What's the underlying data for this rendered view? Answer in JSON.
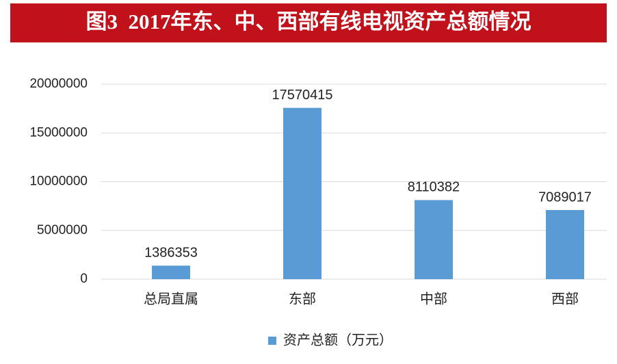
{
  "chart_data": {
    "type": "bar",
    "title": "图3  2017年东、中、西部有线电视资产总额情况",
    "categories": [
      "总局直属",
      "东部",
      "中部",
      "西部"
    ],
    "series": [
      {
        "name": "资产总额（万元）",
        "color": "#5b9bd5",
        "values": [
          1386353,
          17570415,
          8110382,
          7089017
        ]
      }
    ],
    "ylim": [
      0,
      20000000
    ],
    "yticks": [
      0,
      5000000,
      10000000,
      15000000,
      20000000
    ],
    "grid": true,
    "legend": "bottom"
  }
}
